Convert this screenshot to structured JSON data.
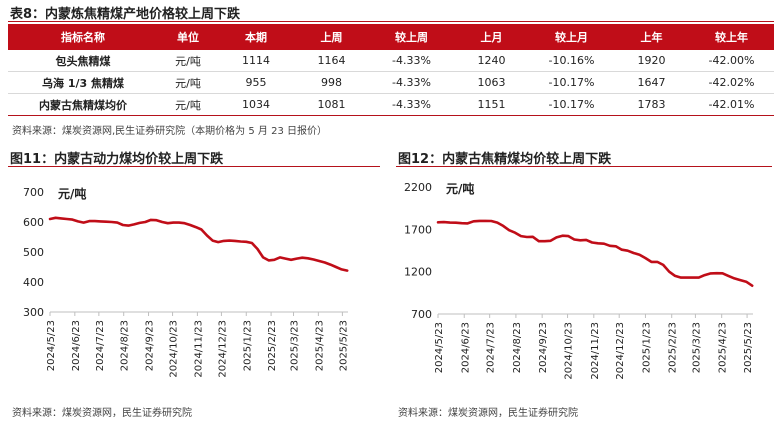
{
  "table": {
    "title": "表8：内蒙炼焦精煤产地价格较上周下跌",
    "headers": [
      "指标名称",
      "单位",
      "本期",
      "上周",
      "较上周",
      "上月",
      "较上月",
      "上年",
      "较上年"
    ],
    "rows": [
      [
        "包头焦精煤",
        "元/吨",
        "1114",
        "1164",
        "-4.33%",
        "1240",
        "-10.16%",
        "1920",
        "-42.00%"
      ],
      [
        "乌海 1/3 焦精煤",
        "元/吨",
        "955",
        "998",
        "-4.33%",
        "1063",
        "-10.17%",
        "1647",
        "-42.02%"
      ],
      [
        "内蒙古焦精煤均价",
        "元/吨",
        "1034",
        "1081",
        "-4.33%",
        "1151",
        "-10.17%",
        "1783",
        "-42.01%"
      ]
    ],
    "source": "资料来源：煤炭资源网,民生证券研究院（本期价格为 5 月 23 日报价）"
  },
  "colors": {
    "accent": "#c00d18",
    "line": "#c00d18",
    "axis": "#bfbfbf"
  },
  "chart_data": [
    {
      "type": "line",
      "title": "图11：内蒙古动力煤均价较上周下跌",
      "ylabel": "元/吨",
      "ylim": [
        300,
        700
      ],
      "yticks": [
        300,
        400,
        500,
        600,
        700
      ],
      "x_range": [
        "2024-05-23",
        "2025-05-30"
      ],
      "xticks": [
        "2024/5/23",
        "2024/6/23",
        "2024/7/23",
        "2024/8/23",
        "2024/9/23",
        "2024/10/23",
        "2024/11/23",
        "2024/12/23",
        "2025/1/23",
        "2025/2/23",
        "2025/3/23",
        "2025/4/23",
        "2025/5/23"
      ],
      "grid": false,
      "series": [
        {
          "x": [
            "2024-05-23",
            "2024-05-30",
            "2024-06-06",
            "2024-06-13",
            "2024-06-20",
            "2024-06-27",
            "2024-07-04",
            "2024-07-11",
            "2024-07-18",
            "2024-07-25",
            "2024-08-01",
            "2024-08-08",
            "2024-08-15",
            "2024-08-22",
            "2024-08-29",
            "2024-09-05",
            "2024-09-12",
            "2024-09-19",
            "2024-09-26",
            "2024-10-03",
            "2024-10-10",
            "2024-10-17",
            "2024-10-24",
            "2024-10-31",
            "2024-11-07",
            "2024-11-14",
            "2024-11-21",
            "2024-11-28",
            "2024-12-05",
            "2024-12-12",
            "2024-12-19",
            "2024-12-26",
            "2025-01-02",
            "2025-01-09",
            "2025-01-16",
            "2025-01-23",
            "2025-01-30",
            "2025-02-06",
            "2025-02-13",
            "2025-02-20",
            "2025-02-27",
            "2025-03-06",
            "2025-03-13",
            "2025-03-20",
            "2025-03-27",
            "2025-04-03",
            "2025-04-10",
            "2025-04-17",
            "2025-04-24",
            "2025-05-01",
            "2025-05-08",
            "2025-05-15",
            "2025-05-22",
            "2025-05-29"
          ],
          "values": [
            610,
            614,
            612,
            610,
            608,
            602,
            598,
            603,
            603,
            602,
            601,
            600,
            598,
            590,
            588,
            592,
            597,
            600,
            607,
            606,
            600,
            596,
            598,
            598,
            596,
            590,
            583,
            575,
            555,
            538,
            533,
            537,
            538,
            537,
            535,
            534,
            530,
            510,
            482,
            472,
            474,
            482,
            478,
            474,
            478,
            481,
            479,
            475,
            470,
            465,
            458,
            450,
            442,
            438
          ]
        }
      ],
      "source": "资料来源：煤炭资源网，民生证券研究院"
    },
    {
      "type": "line",
      "title": "图12：内蒙古焦精煤均价较上周下跌",
      "ylabel": "元/吨",
      "ylim": [
        700,
        2200
      ],
      "yticks": [
        700,
        1200,
        1700,
        2200
      ],
      "x_range": [
        "2024-05-23",
        "2025-05-30"
      ],
      "xticks": [
        "2024/5/23",
        "2024/6/23",
        "2024/7/23",
        "2024/8/23",
        "2024/9/23",
        "2024/10/23",
        "2024/11/23",
        "2024/12/23",
        "2025/1/23",
        "2025/2/23",
        "2025/3/23",
        "2025/4/23",
        "2025/5/23"
      ],
      "grid": false,
      "series": [
        {
          "x": [
            "2024-05-23",
            "2024-05-30",
            "2024-06-06",
            "2024-06-13",
            "2024-06-20",
            "2024-06-27",
            "2024-07-04",
            "2024-07-11",
            "2024-07-18",
            "2024-07-25",
            "2024-08-01",
            "2024-08-08",
            "2024-08-15",
            "2024-08-22",
            "2024-08-29",
            "2024-09-05",
            "2024-09-12",
            "2024-09-19",
            "2024-09-26",
            "2024-10-03",
            "2024-10-10",
            "2024-10-17",
            "2024-10-24",
            "2024-10-31",
            "2024-11-07",
            "2024-11-14",
            "2024-11-21",
            "2024-11-28",
            "2024-12-05",
            "2024-12-12",
            "2024-12-19",
            "2024-12-26",
            "2025-01-02",
            "2025-01-09",
            "2025-01-16",
            "2025-01-23",
            "2025-01-30",
            "2025-02-06",
            "2025-02-13",
            "2025-02-20",
            "2025-02-27",
            "2025-03-06",
            "2025-03-13",
            "2025-03-20",
            "2025-03-27",
            "2025-04-03",
            "2025-04-10",
            "2025-04-17",
            "2025-04-24",
            "2025-05-01",
            "2025-05-08",
            "2025-05-15",
            "2025-05-22",
            "2025-05-29"
          ],
          "values": [
            1783,
            1785,
            1780,
            1778,
            1772,
            1770,
            1795,
            1800,
            1800,
            1798,
            1780,
            1740,
            1690,
            1660,
            1620,
            1610,
            1612,
            1560,
            1560,
            1565,
            1605,
            1625,
            1620,
            1580,
            1570,
            1575,
            1545,
            1535,
            1530,
            1505,
            1500,
            1460,
            1448,
            1420,
            1400,
            1360,
            1315,
            1315,
            1280,
            1200,
            1150,
            1130,
            1130,
            1130,
            1130,
            1160,
            1180,
            1182,
            1181,
            1150,
            1120,
            1100,
            1081,
            1034
          ]
        }
      ],
      "source": "资料来源：煤炭资源网，民生证券研究院"
    }
  ]
}
